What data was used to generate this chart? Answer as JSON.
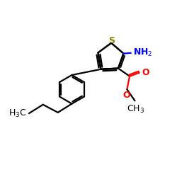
{
  "bg_color": "#ffffff",
  "bond_color": "#000000",
  "sulfur_color": "#808000",
  "nitrogen_color": "#0000ff",
  "oxygen_color": "#ff0000",
  "line_width": 1.6,
  "figsize": [
    2.5,
    2.5
  ],
  "dpi": 100,
  "xlim": [
    0,
    10
  ],
  "ylim": [
    0,
    10
  ]
}
